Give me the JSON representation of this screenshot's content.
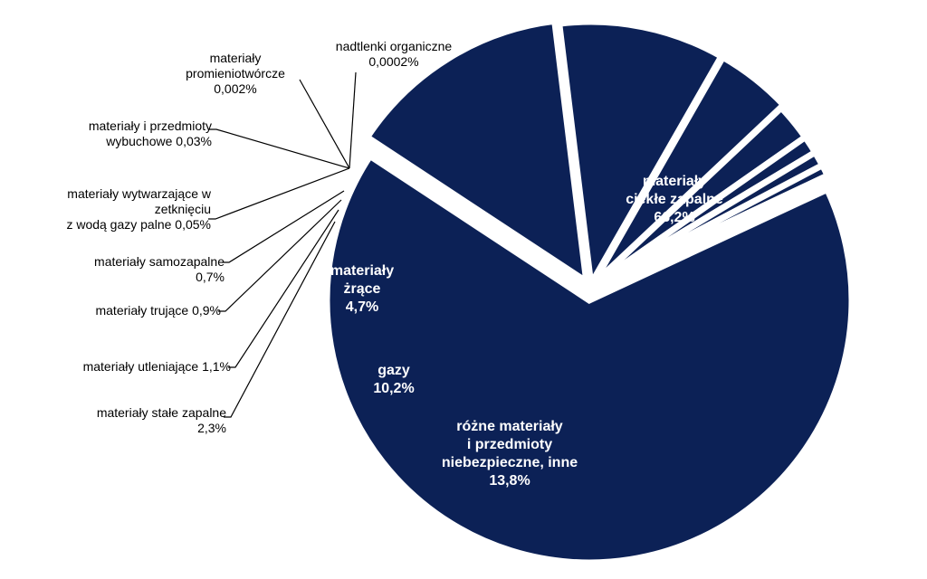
{
  "chart_data": {
    "type": "pie",
    "title": "",
    "colors": {
      "slice": "#0c2156",
      "separator": "#ffffff",
      "inside_text": "#ffffff",
      "outside_text": "#000000"
    },
    "slices": [
      {
        "label_lines": [
          "materiały",
          "ciekłe zapalne",
          "66,2%"
        ],
        "value": 66.2
      },
      {
        "label_lines": [
          "różne materiały",
          "i przedmioty",
          "niebezpieczne, inne",
          "13,8%"
        ],
        "value": 13.8
      },
      {
        "label_lines": [
          "gazy",
          "10,2%"
        ],
        "value": 10.2
      },
      {
        "label_lines": [
          "materiały",
          "żrące",
          "4,7%"
        ],
        "value": 4.7
      },
      {
        "label_lines": [
          "materiały stałe zapalne",
          "2,3%"
        ],
        "value": 2.3
      },
      {
        "label_lines": [
          "materiały utleniające 1,1%"
        ],
        "value": 1.1
      },
      {
        "label_lines": [
          "materiały trujące 0,9%"
        ],
        "value": 0.9
      },
      {
        "label_lines": [
          "materiały samozapalne",
          "0,7%"
        ],
        "value": 0.7
      },
      {
        "label_lines": [
          "materiały wytwarzające w",
          "zetknięciu",
          "z wodą gazy palne 0,05%"
        ],
        "value": 0.05
      },
      {
        "label_lines": [
          "materiały i przedmioty",
          "wybuchowe 0,03%"
        ],
        "value": 0.03
      },
      {
        "label_lines": [
          "materiały",
          "promieniotwórcze",
          "0,002%"
        ],
        "value": 0.002
      },
      {
        "label_lines": [
          "nadtlenki organiczne",
          "0,0002%"
        ],
        "value": 0.0002
      }
    ]
  }
}
